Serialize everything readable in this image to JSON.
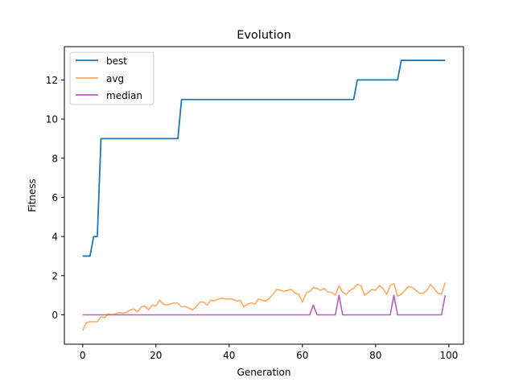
{
  "chart_data": {
    "type": "line",
    "title": "Evolution",
    "xlabel": "Generation",
    "ylabel": "Fitness",
    "xlim": [
      -5,
      104
    ],
    "ylim": [
      -1.5,
      13.7
    ],
    "xticks": [
      0,
      20,
      40,
      60,
      80,
      100
    ],
    "yticks": [
      0,
      2,
      4,
      6,
      8,
      10,
      12
    ],
    "legend_position": "top-left",
    "grid": false,
    "series": [
      {
        "name": "best",
        "color": "#1f77b4",
        "x": [
          0,
          1,
          2,
          3,
          4,
          5,
          6,
          7,
          8,
          9,
          10,
          11,
          12,
          13,
          14,
          15,
          16,
          17,
          18,
          19,
          20,
          21,
          22,
          23,
          24,
          25,
          26,
          27,
          28,
          29,
          30,
          31,
          32,
          33,
          34,
          35,
          36,
          37,
          38,
          39,
          40,
          41,
          42,
          43,
          44,
          45,
          46,
          47,
          48,
          49,
          50,
          51,
          52,
          53,
          54,
          55,
          56,
          57,
          58,
          59,
          60,
          61,
          62,
          63,
          64,
          65,
          66,
          67,
          68,
          69,
          70,
          71,
          72,
          73,
          74,
          75,
          76,
          77,
          78,
          79,
          80,
          81,
          82,
          83,
          84,
          85,
          86,
          87,
          88,
          89,
          90,
          91,
          92,
          93,
          94,
          95,
          96,
          97,
          98,
          99
        ],
        "values": [
          3,
          3,
          3,
          4,
          4,
          9,
          9,
          9,
          9,
          9,
          9,
          9,
          9,
          9,
          9,
          9,
          9,
          9,
          9,
          9,
          9,
          9,
          9,
          9,
          9,
          9,
          9,
          11,
          11,
          11,
          11,
          11,
          11,
          11,
          11,
          11,
          11,
          11,
          11,
          11,
          11,
          11,
          11,
          11,
          11,
          11,
          11,
          11,
          11,
          11,
          11,
          11,
          11,
          11,
          11,
          11,
          11,
          11,
          11,
          11,
          11,
          11,
          11,
          11,
          11,
          11,
          11,
          11,
          11,
          11,
          11,
          11,
          11,
          11,
          11,
          12,
          12,
          12,
          12,
          12,
          12,
          12,
          12,
          12,
          12,
          12,
          12,
          13,
          13,
          13,
          13,
          13,
          13,
          13,
          13,
          13,
          13,
          13,
          13,
          13
        ]
      },
      {
        "name": "avg",
        "color": "#ffaa5e",
        "x": [
          0,
          1,
          2,
          3,
          4,
          5,
          6,
          7,
          8,
          9,
          10,
          11,
          12,
          13,
          14,
          15,
          16,
          17,
          18,
          19,
          20,
          21,
          22,
          23,
          24,
          25,
          26,
          27,
          28,
          29,
          30,
          31,
          32,
          33,
          34,
          35,
          36,
          37,
          38,
          39,
          40,
          41,
          42,
          43,
          44,
          45,
          46,
          47,
          48,
          49,
          50,
          51,
          52,
          53,
          54,
          55,
          56,
          57,
          58,
          59,
          60,
          61,
          62,
          63,
          64,
          65,
          66,
          67,
          68,
          69,
          70,
          71,
          72,
          73,
          74,
          75,
          76,
          77,
          78,
          79,
          80,
          81,
          82,
          83,
          84,
          85,
          86,
          87,
          88,
          89,
          90,
          91,
          92,
          93,
          94,
          95,
          96,
          97,
          98,
          99
        ],
        "values": [
          -0.8,
          -0.4,
          -0.35,
          -0.35,
          -0.35,
          -0.1,
          -0.15,
          0.05,
          0.0,
          0.05,
          0.12,
          0.08,
          0.12,
          0.25,
          0.3,
          0.15,
          0.4,
          0.45,
          0.25,
          0.5,
          0.45,
          0.75,
          0.55,
          0.5,
          0.55,
          0.6,
          0.6,
          0.4,
          0.42,
          0.35,
          0.25,
          0.4,
          0.65,
          0.65,
          0.5,
          0.75,
          0.72,
          0.8,
          0.85,
          0.8,
          0.82,
          0.8,
          0.7,
          0.75,
          0.4,
          0.55,
          0.6,
          0.55,
          0.8,
          0.75,
          0.7,
          0.85,
          1.05,
          1.3,
          1.25,
          1.2,
          1.25,
          1.3,
          1.1,
          1.05,
          0.65,
          1.1,
          1.2,
          1.4,
          1.35,
          1.25,
          1.35,
          1.15,
          1.15,
          1.0,
          1.5,
          1.15,
          1.05,
          1.25,
          1.35,
          1.55,
          1.5,
          1.0,
          1.15,
          1.3,
          1.25,
          1.5,
          1.35,
          1.05,
          1.5,
          1.6,
          0.95,
          1.05,
          1.25,
          1.45,
          1.4,
          1.25,
          1.1,
          1.1,
          1.25,
          1.55,
          1.35,
          1.1,
          1.05,
          1.65
        ]
      },
      {
        "name": "median",
        "color": "#bd5cbd",
        "x": [
          0,
          1,
          2,
          3,
          4,
          5,
          6,
          7,
          8,
          9,
          10,
          11,
          12,
          13,
          14,
          15,
          16,
          17,
          18,
          19,
          20,
          21,
          22,
          23,
          24,
          25,
          26,
          27,
          28,
          29,
          30,
          31,
          32,
          33,
          34,
          35,
          36,
          37,
          38,
          39,
          40,
          41,
          42,
          43,
          44,
          45,
          46,
          47,
          48,
          49,
          50,
          51,
          52,
          53,
          54,
          55,
          56,
          57,
          58,
          59,
          60,
          61,
          62,
          63,
          64,
          65,
          66,
          67,
          68,
          69,
          70,
          71,
          72,
          73,
          74,
          75,
          76,
          77,
          78,
          79,
          80,
          81,
          82,
          83,
          84,
          85,
          86,
          87,
          88,
          89,
          90,
          91,
          92,
          93,
          94,
          95,
          96,
          97,
          98,
          99
        ],
        "values": [
          0,
          0,
          0,
          0,
          0,
          0,
          0,
          0,
          0,
          0,
          0,
          0,
          0,
          0,
          0,
          0,
          0,
          0,
          0,
          0,
          0,
          0,
          0,
          0,
          0,
          0,
          0,
          0,
          0,
          0,
          0,
          0,
          0,
          0,
          0,
          0,
          0,
          0,
          0,
          0,
          0,
          0,
          0,
          0,
          0,
          0,
          0,
          0,
          0,
          0,
          0,
          0,
          0,
          0,
          0,
          0,
          0,
          0,
          0,
          0,
          0,
          0,
          0,
          0.5,
          0,
          0,
          0,
          0,
          0,
          0,
          1,
          0,
          0,
          0,
          0,
          0,
          0,
          0,
          0,
          0,
          0,
          0,
          0,
          0,
          0,
          1,
          0,
          0,
          0,
          0,
          0,
          0,
          0,
          0,
          0,
          0,
          0,
          0,
          0,
          1
        ]
      }
    ]
  }
}
